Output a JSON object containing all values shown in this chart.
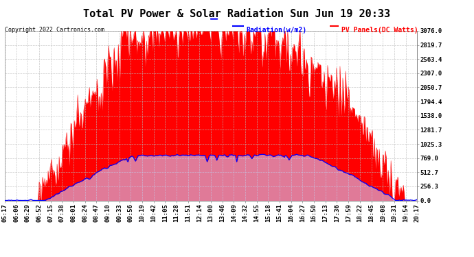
{
  "title": "Total PV Power & Solar Radiation Sun Jun 19 20:33",
  "copyright": "Copyright 2022 Cartronics.com",
  "legend_radiation": "Radiation(w/m2)",
  "legend_pv": "PV Panels(DC Watts)",
  "y_max": 3076.0,
  "y_ticks": [
    0.0,
    256.3,
    512.7,
    769.0,
    1025.3,
    1281.7,
    1538.0,
    1794.4,
    2050.7,
    2307.0,
    2563.4,
    2819.7,
    3076.0
  ],
  "x_labels": [
    "05:17",
    "06:06",
    "06:29",
    "06:52",
    "07:15",
    "07:38",
    "08:01",
    "08:24",
    "08:47",
    "09:10",
    "09:33",
    "09:56",
    "10:19",
    "10:42",
    "11:05",
    "11:28",
    "11:51",
    "12:14",
    "13:00",
    "13:46",
    "14:09",
    "14:32",
    "14:55",
    "15:18",
    "15:41",
    "16:04",
    "16:27",
    "16:50",
    "17:13",
    "17:36",
    "17:59",
    "18:22",
    "18:45",
    "19:08",
    "19:31",
    "19:54",
    "20:17"
  ],
  "bg_color": "#ffffff",
  "grid_color": "#bbbbbb",
  "fill_color": "#ff0000",
  "line_color_pv": "#0000ff",
  "title_fontsize": 11,
  "tick_fontsize": 6.5,
  "copyright_fontsize": 6,
  "legend_fontsize": 7
}
